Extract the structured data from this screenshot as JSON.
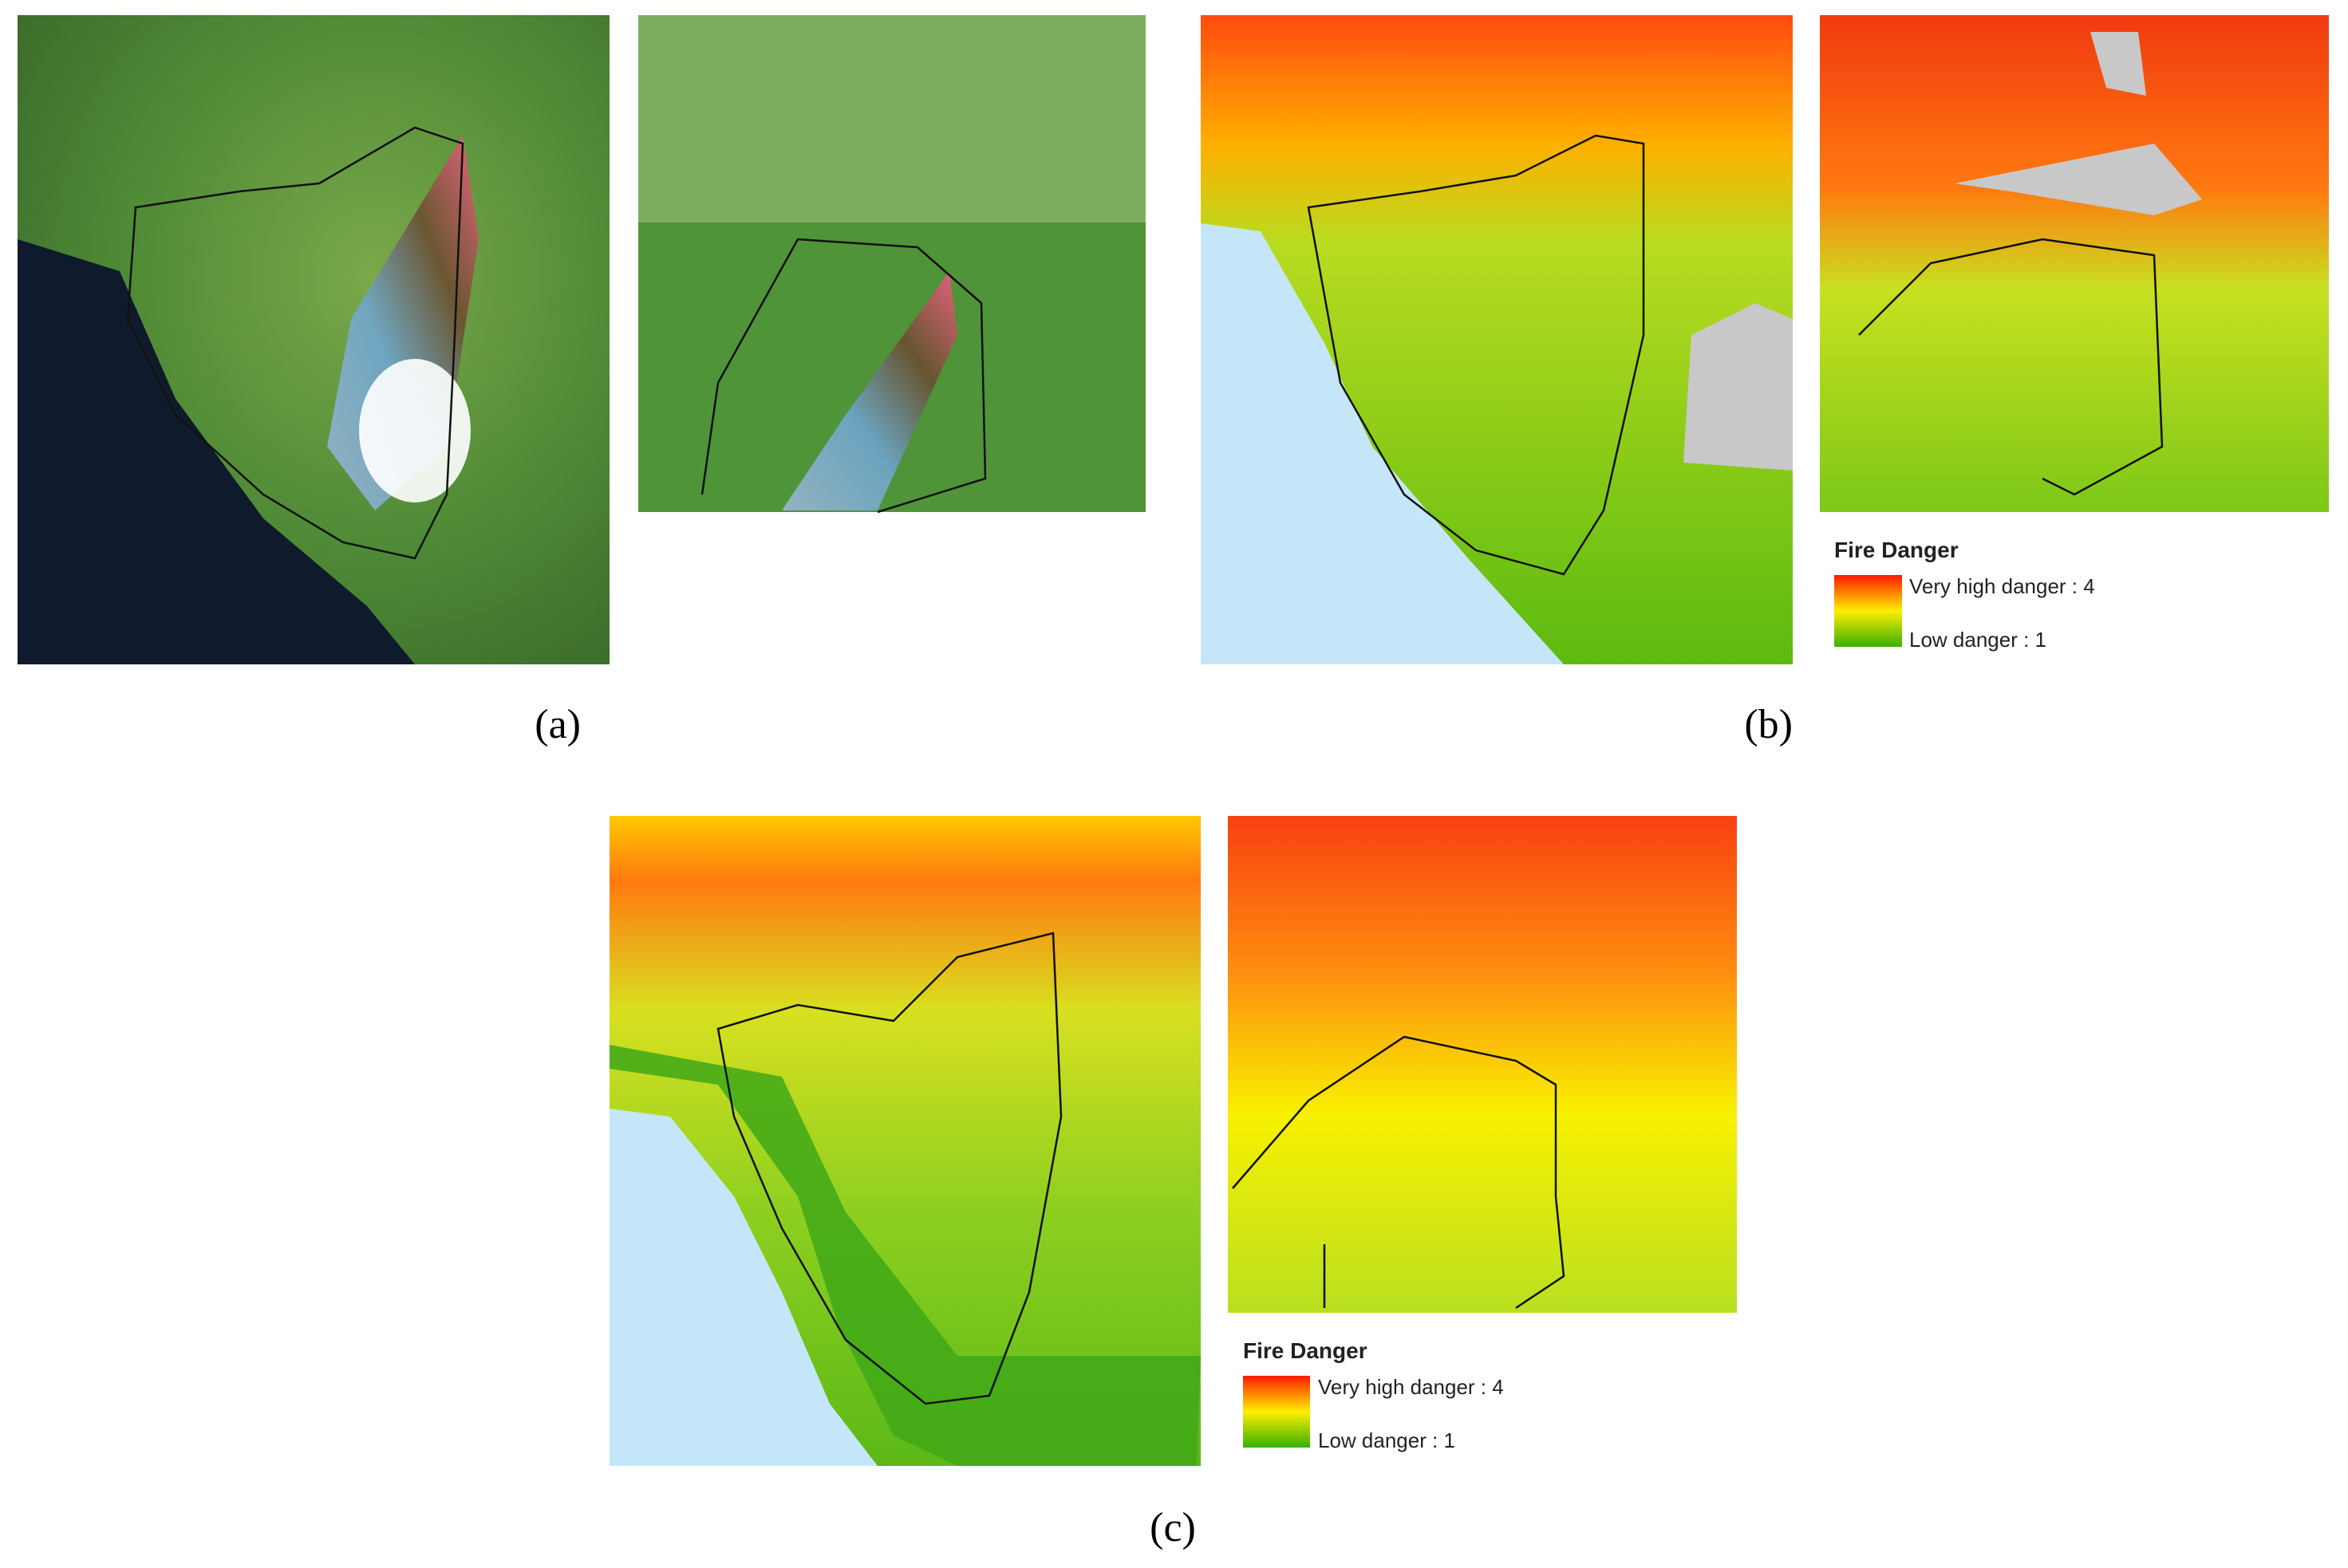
{
  "panels": [
    {
      "label": "(a)"
    },
    {
      "label": "(b)",
      "legend": {
        "title": "Fire Danger",
        "high": "Very high danger : 4",
        "low": "Low danger : 1"
      }
    },
    {
      "label": "(c)",
      "legend": {
        "title": "Fire Danger",
        "high": "Very high danger : 4",
        "low": "Low danger : 1"
      }
    }
  ]
}
